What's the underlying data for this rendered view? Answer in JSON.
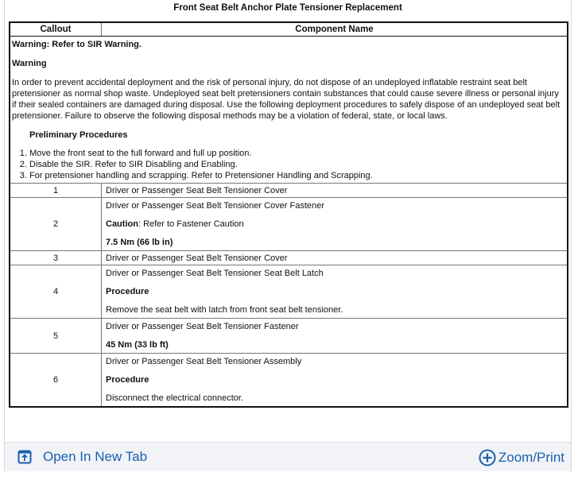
{
  "title": "Front Seat Belt Anchor Plate Tensioner Replacement",
  "columns": [
    "Callout",
    "Component Name"
  ],
  "intro": {
    "warning_ref": "Warning: Refer to SIR Warning.",
    "warning_heading": "Warning",
    "warning_text": "In order to prevent accidental deployment and the risk of personal injury, do not dispose of an undeployed inflatable restraint seat belt pretensioner as normal shop waste. Undeployed seat belt pretensioners contain substances that could cause severe illness or personal injury if their sealed containers are damaged during disposal. Use the following deployment procedures to safely dispose of an undeployed seat belt pretensioner. Failure to observe the following disposal methods may be a violation of federal, state, or local laws.",
    "prelim_heading": "Preliminary Procedures",
    "steps": [
      "Move the front seat to the full forward and full up position.",
      "Disable the SIR. Refer to SIR Disabling and Enabling.",
      "For pretensioner handling and scrapping. Refer to Pretensioner Handling and Scrapping."
    ]
  },
  "rows": [
    {
      "callout": "1",
      "name": "Driver or Passenger Seat Belt Tensioner Cover"
    },
    {
      "callout": "2",
      "name": "Driver or Passenger Seat Belt Tensioner Cover Fastener",
      "caution_label": "Caution",
      "caution_text": ": Refer to Fastener Caution",
      "torque": "7.5 Nm (66 lb in)"
    },
    {
      "callout": "3",
      "name": "Driver or Passenger Seat Belt Tensioner Cover"
    },
    {
      "callout": "4",
      "name": "Driver or Passenger Seat Belt Tensioner Seat Belt Latch",
      "procedure": "Procedure",
      "procedure_text": "Remove the seat belt with latch from front seat belt tensioner."
    },
    {
      "callout": "5",
      "name": "Driver or Passenger Seat Belt Tensioner Fastener",
      "torque": "45 Nm (33 lb ft)"
    },
    {
      "callout": "6",
      "name": "Driver or Passenger Seat Belt Tensioner Assembly",
      "procedure": "Procedure",
      "procedure_text": "Disconnect the electrical connector."
    }
  ],
  "footer": {
    "open_tab": "Open In New Tab",
    "zoom_print": "Zoom/Print",
    "link_color": "#1b5fae"
  }
}
